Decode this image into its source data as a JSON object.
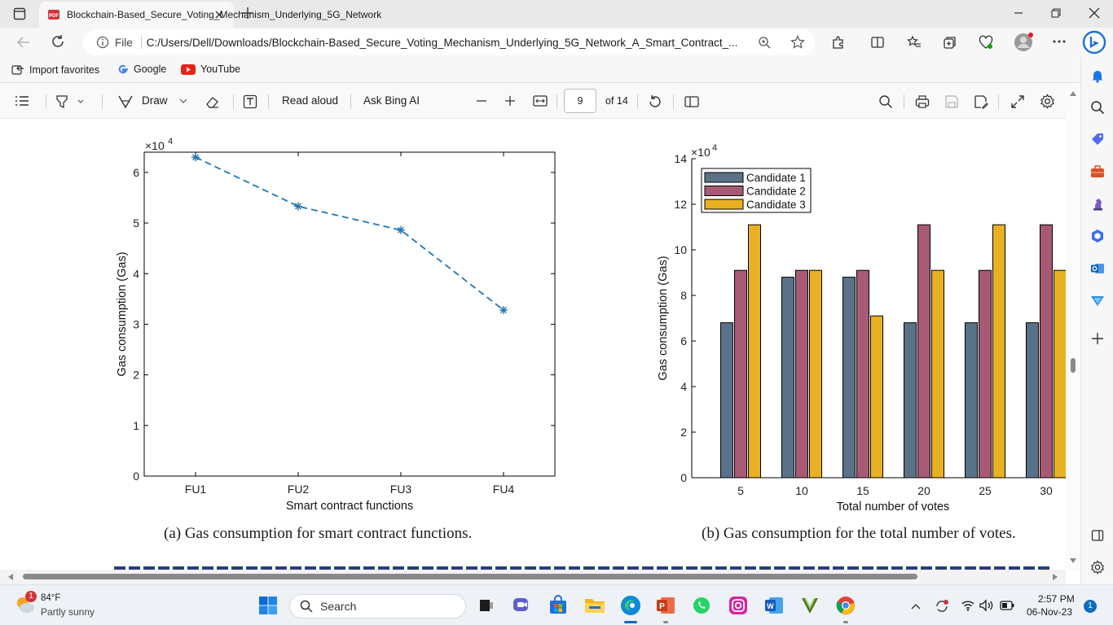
{
  "browser": {
    "tab_title": "Blockchain-Based_Secure_Voting_Mechanism_Underlying_5G_Network",
    "address_prefix": "File",
    "url": "C:/Users/Dell/Downloads/Blockchain-Based_Secure_Voting_Mechanism_Underlying_5G_Network_A_Smart_Contract_...",
    "favorites": [
      {
        "label": "Import favorites",
        "icon": "import-icon"
      },
      {
        "label": "Google",
        "icon": "google-icon"
      },
      {
        "label": "YouTube",
        "icon": "youtube-icon"
      }
    ]
  },
  "pdf_toolbar": {
    "draw_label": "Draw",
    "read_aloud_label": "Read aloud",
    "ask_bing_label": "Ask Bing AI",
    "page_number": "9",
    "page_total": "of 14"
  },
  "figure_a": {
    "caption": "(a) Gas consumption for smart contract functions.",
    "exponent_base": "×10",
    "exponent_power": "4"
  },
  "figure_b": {
    "caption": "(b) Gas consumption for the total number of votes.",
    "exponent_base": "×10",
    "exponent_power": "4"
  },
  "chart_data": [
    {
      "type": "line",
      "categories": [
        "FU1",
        "FU2",
        "FU3",
        "FU4"
      ],
      "series": [
        {
          "values": [
            6.3,
            5.33,
            4.86,
            3.28
          ]
        }
      ],
      "xlabel": "Smart contract functions",
      "ylabel": "Gas consumption (Gas)",
      "ylim": [
        0,
        6.4
      ],
      "yticks": [
        0,
        1,
        2,
        3,
        4,
        5,
        6
      ],
      "marker": "asterisk",
      "line_style": "dashed",
      "color": "#1f77b4",
      "grid": false
    },
    {
      "type": "bar",
      "categories": [
        "5",
        "10",
        "15",
        "20",
        "25",
        "30"
      ],
      "series": [
        {
          "name": "Candidate 1",
          "color": "#5a7289",
          "values": [
            6.8,
            8.8,
            8.8,
            6.8,
            6.8,
            6.8
          ]
        },
        {
          "name": "Candidate 2",
          "color": "#a85a75",
          "values": [
            9.1,
            9.1,
            9.1,
            11.1,
            9.1,
            11.1
          ]
        },
        {
          "name": "Candidate 3",
          "color": "#e8b123",
          "values": [
            11.1,
            9.1,
            7.1,
            9.1,
            11.1,
            9.1
          ]
        }
      ],
      "xlabel": "Total number of votes",
      "ylabel": "Gas consumption (Gas)",
      "ylim": [
        0,
        14
      ],
      "yticks": [
        0,
        2,
        4,
        6,
        8,
        10,
        12,
        14
      ],
      "legend_position": "top-left",
      "grid": false
    }
  ],
  "taskbar": {
    "weather_temp": "84°F",
    "weather_desc": "Partly sunny",
    "weather_badge": "1",
    "search_label": "Search",
    "time": "2:57 PM",
    "date": "06-Nov-23",
    "notification_count": "1"
  },
  "colors": {
    "accent": "#0f6cbd",
    "chart_line": "#1f77b4"
  }
}
